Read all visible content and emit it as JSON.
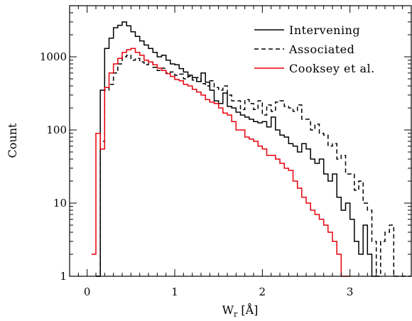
{
  "chart_data": {
    "type": "line",
    "step": true,
    "title": "",
    "xlabel": "W",
    "xlabel_sub": "r",
    "xlabel_unit": " [Å]",
    "ylabel": "Count",
    "xlim": [
      -0.2,
      3.7
    ],
    "ylim": [
      1,
      5000
    ],
    "yscale": "log",
    "bin_width": 0.05,
    "grid": false,
    "legend_position": "top-right",
    "x_ticks": [
      0,
      1,
      2,
      3
    ],
    "x_tick_labels": [
      "0",
      "1",
      "2",
      "3"
    ],
    "y_ticks": [
      1,
      10,
      100,
      1000
    ],
    "y_tick_labels": [
      "1",
      "10",
      "100",
      "1000"
    ],
    "series": [
      {
        "name": "Intervening",
        "color": "#000000",
        "dash": "solid",
        "edges": [
          0.1,
          0.15,
          0.2,
          0.25,
          0.3,
          0.35,
          0.4,
          0.45,
          0.5,
          0.55,
          0.6,
          0.65,
          0.7,
          0.75,
          0.8,
          0.85,
          0.9,
          0.95,
          1.0,
          1.05,
          1.1,
          1.15,
          1.2,
          1.25,
          1.3,
          1.35,
          1.4,
          1.45,
          1.5,
          1.55,
          1.6,
          1.65,
          1.7,
          1.75,
          1.8,
          1.85,
          1.9,
          1.95,
          2.0,
          2.05,
          2.1,
          2.15,
          2.2,
          2.25,
          2.3,
          2.35,
          2.4,
          2.45,
          2.5,
          2.55,
          2.6,
          2.65,
          2.7,
          2.75,
          2.8,
          2.85,
          2.9,
          2.95,
          3.0,
          3.05,
          3.1,
          3.15,
          3.2,
          3.25,
          3.3
        ],
        "values": [
          1,
          350,
          1300,
          1800,
          2500,
          2700,
          3000,
          2650,
          2200,
          1900,
          1650,
          1450,
          1300,
          1150,
          1000,
          1050,
          900,
          800,
          780,
          690,
          620,
          560,
          520,
          460,
          600,
          450,
          350,
          250,
          230,
          320,
          210,
          200,
          175,
          160,
          150,
          140,
          130,
          125,
          130,
          110,
          150,
          100,
          85,
          80,
          65,
          60,
          50,
          65,
          55,
          40,
          35,
          40,
          25,
          20,
          25,
          12,
          8,
          10,
          6,
          3,
          2,
          5,
          2,
          1
        ]
      },
      {
        "name": "Associated",
        "color": "#000000",
        "dash": "6,4",
        "edges": [
          0.1,
          0.15,
          0.2,
          0.25,
          0.3,
          0.35,
          0.4,
          0.45,
          0.5,
          0.55,
          0.6,
          0.65,
          0.7,
          0.75,
          0.8,
          0.85,
          0.9,
          0.95,
          1.0,
          1.05,
          1.1,
          1.15,
          1.2,
          1.25,
          1.3,
          1.35,
          1.4,
          1.45,
          1.5,
          1.55,
          1.6,
          1.65,
          1.7,
          1.75,
          1.8,
          1.85,
          1.9,
          1.95,
          2.0,
          2.05,
          2.1,
          2.15,
          2.2,
          2.25,
          2.3,
          2.35,
          2.4,
          2.45,
          2.5,
          2.55,
          2.6,
          2.65,
          2.7,
          2.75,
          2.8,
          2.85,
          2.9,
          2.95,
          3.0,
          3.05,
          3.1,
          3.15,
          3.2,
          3.25,
          3.3,
          3.35,
          3.4,
          3.45,
          3.5,
          3.55,
          3.6,
          3.65,
          3.7
        ],
        "values": [
          1,
          70,
          350,
          420,
          600,
          800,
          1000,
          1050,
          900,
          950,
          850,
          780,
          850,
          720,
          650,
          700,
          600,
          620,
          560,
          580,
          500,
          540,
          480,
          520,
          430,
          400,
          470,
          380,
          350,
          400,
          300,
          250,
          250,
          190,
          260,
          230,
          190,
          250,
          160,
          220,
          180,
          240,
          250,
          210,
          200,
          180,
          220,
          140,
          140,
          100,
          120,
          90,
          85,
          60,
          65,
          40,
          45,
          25,
          25,
          15,
          20,
          10,
          8,
          3,
          1,
          3,
          4,
          5,
          1,
          1,
          1,
          1
        ]
      },
      {
        "name": "Cooksey et al.",
        "color": "#e8000b",
        "dash": "solid",
        "edges": [
          0.05,
          0.1,
          0.15,
          0.2,
          0.25,
          0.3,
          0.35,
          0.4,
          0.45,
          0.5,
          0.55,
          0.6,
          0.65,
          0.7,
          0.75,
          0.8,
          0.85,
          0.9,
          0.95,
          1.0,
          1.05,
          1.1,
          1.15,
          1.2,
          1.25,
          1.3,
          1.35,
          1.4,
          1.45,
          1.5,
          1.55,
          1.6,
          1.65,
          1.7,
          1.75,
          1.8,
          1.85,
          1.9,
          1.95,
          2.0,
          2.05,
          2.1,
          2.15,
          2.2,
          2.25,
          2.3,
          2.35,
          2.4,
          2.45,
          2.5,
          2.55,
          2.6,
          2.65,
          2.7,
          2.75,
          2.8,
          2.85,
          2.9,
          2.95,
          3.0
        ],
        "values": [
          2,
          90,
          55,
          380,
          600,
          800,
          950,
          1150,
          1250,
          1300,
          1150,
          1050,
          900,
          850,
          780,
          700,
          650,
          590,
          540,
          490,
          470,
          420,
          400,
          360,
          330,
          300,
          260,
          240,
          230,
          200,
          170,
          160,
          130,
          100,
          100,
          80,
          75,
          70,
          60,
          55,
          45,
          45,
          40,
          35,
          30,
          28,
          20,
          16,
          12,
          10,
          8,
          7,
          6,
          5,
          4,
          3,
          2,
          1,
          1
        ]
      }
    ]
  }
}
